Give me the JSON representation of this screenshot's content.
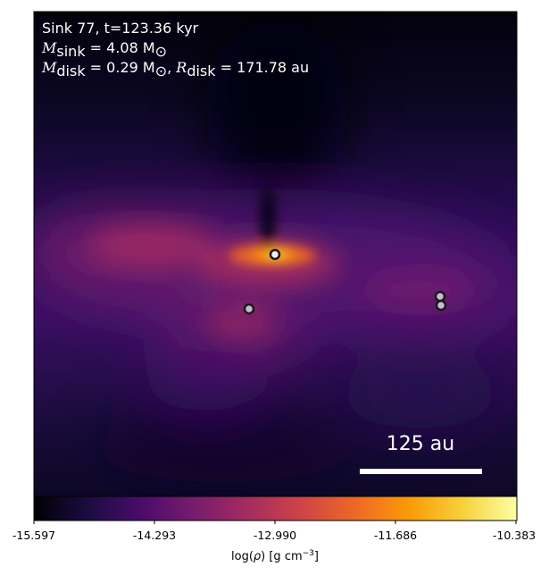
{
  "header": {
    "line1": "Sink 77, t=123.36 kyr",
    "line2": {
      "sym": "M",
      "sub": "sink",
      "rest": " = 4.08 M",
      "sub2": "⊙"
    },
    "line3": {
      "a_sym": "M",
      "a_sub": "disk",
      "a_rest": " = 0.29 M",
      "a_sub2": "⊙",
      "sep": ", ",
      "b_sym": "R",
      "b_sub": "disk",
      "b_rest": " = 171.78 au"
    }
  },
  "scale_bar": {
    "label": "125 au"
  },
  "colorbar": {
    "colormap": "inferno",
    "stops": [
      "#000004",
      "#1b0c41",
      "#4a0c6b",
      "#781c6d",
      "#a52c60",
      "#cf4446",
      "#ed6925",
      "#fb9b06",
      "#f7d13d",
      "#fcffa4"
    ],
    "ticks": [
      "-15.597",
      "-14.293",
      "-12.990",
      "-11.686",
      "-10.383"
    ],
    "label_main": "log(",
    "label_rho": "ρ",
    "label_unit": ") [g cm",
    "label_exp": "−3",
    "label_close": "]"
  },
  "sinks": {
    "primary_fill": "#f0f0f0",
    "secondary_fill": "#c8bcd4",
    "edge": "#1a1a1a"
  }
}
